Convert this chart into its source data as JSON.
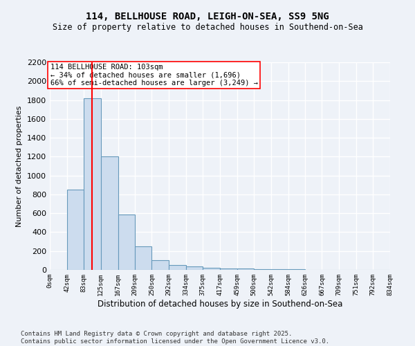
{
  "title": "114, BELLHOUSE ROAD, LEIGH-ON-SEA, SS9 5NG",
  "subtitle": "Size of property relative to detached houses in Southend-on-Sea",
  "xlabel": "Distribution of detached houses by size in Southend-on-Sea",
  "ylabel": "Number of detached properties",
  "bin_edges": [
    0,
    42,
    83,
    125,
    167,
    209,
    250,
    292,
    334,
    375,
    417,
    459,
    500,
    542,
    584,
    626,
    667,
    709,
    751,
    792,
    834
  ],
  "bin_counts": [
    0,
    850,
    1820,
    1200,
    590,
    250,
    100,
    55,
    40,
    25,
    18,
    12,
    8,
    5,
    4,
    3,
    2,
    2,
    1,
    1
  ],
  "bar_facecolor": "#ccdcee",
  "bar_edgecolor": "#6699bb",
  "redline_x": 103,
  "annotation_text": "114 BELLHOUSE ROAD: 103sqm\n← 34% of detached houses are smaller (1,696)\n66% of semi-detached houses are larger (3,249) →",
  "ylim": [
    0,
    2200
  ],
  "yticks": [
    0,
    200,
    400,
    600,
    800,
    1000,
    1200,
    1400,
    1600,
    1800,
    2000,
    2200
  ],
  "bg_color": "#eef2f8",
  "grid_color": "#ffffff",
  "footnote": "Contains HM Land Registry data © Crown copyright and database right 2025.\nContains public sector information licensed under the Open Government Licence v3.0.",
  "tick_labels": [
    "0sqm",
    "42sqm",
    "83sqm",
    "125sqm",
    "167sqm",
    "209sqm",
    "250sqm",
    "292sqm",
    "334sqm",
    "375sqm",
    "417sqm",
    "459sqm",
    "500sqm",
    "542sqm",
    "584sqm",
    "626sqm",
    "667sqm",
    "709sqm",
    "751sqm",
    "792sqm",
    "834sqm"
  ],
  "title_fontsize": 10,
  "subtitle_fontsize": 8.5,
  "ylabel_fontsize": 8,
  "xlabel_fontsize": 8.5,
  "ytick_fontsize": 8,
  "xtick_fontsize": 6.5,
  "footnote_fontsize": 6.5,
  "annotation_fontsize": 7.5
}
